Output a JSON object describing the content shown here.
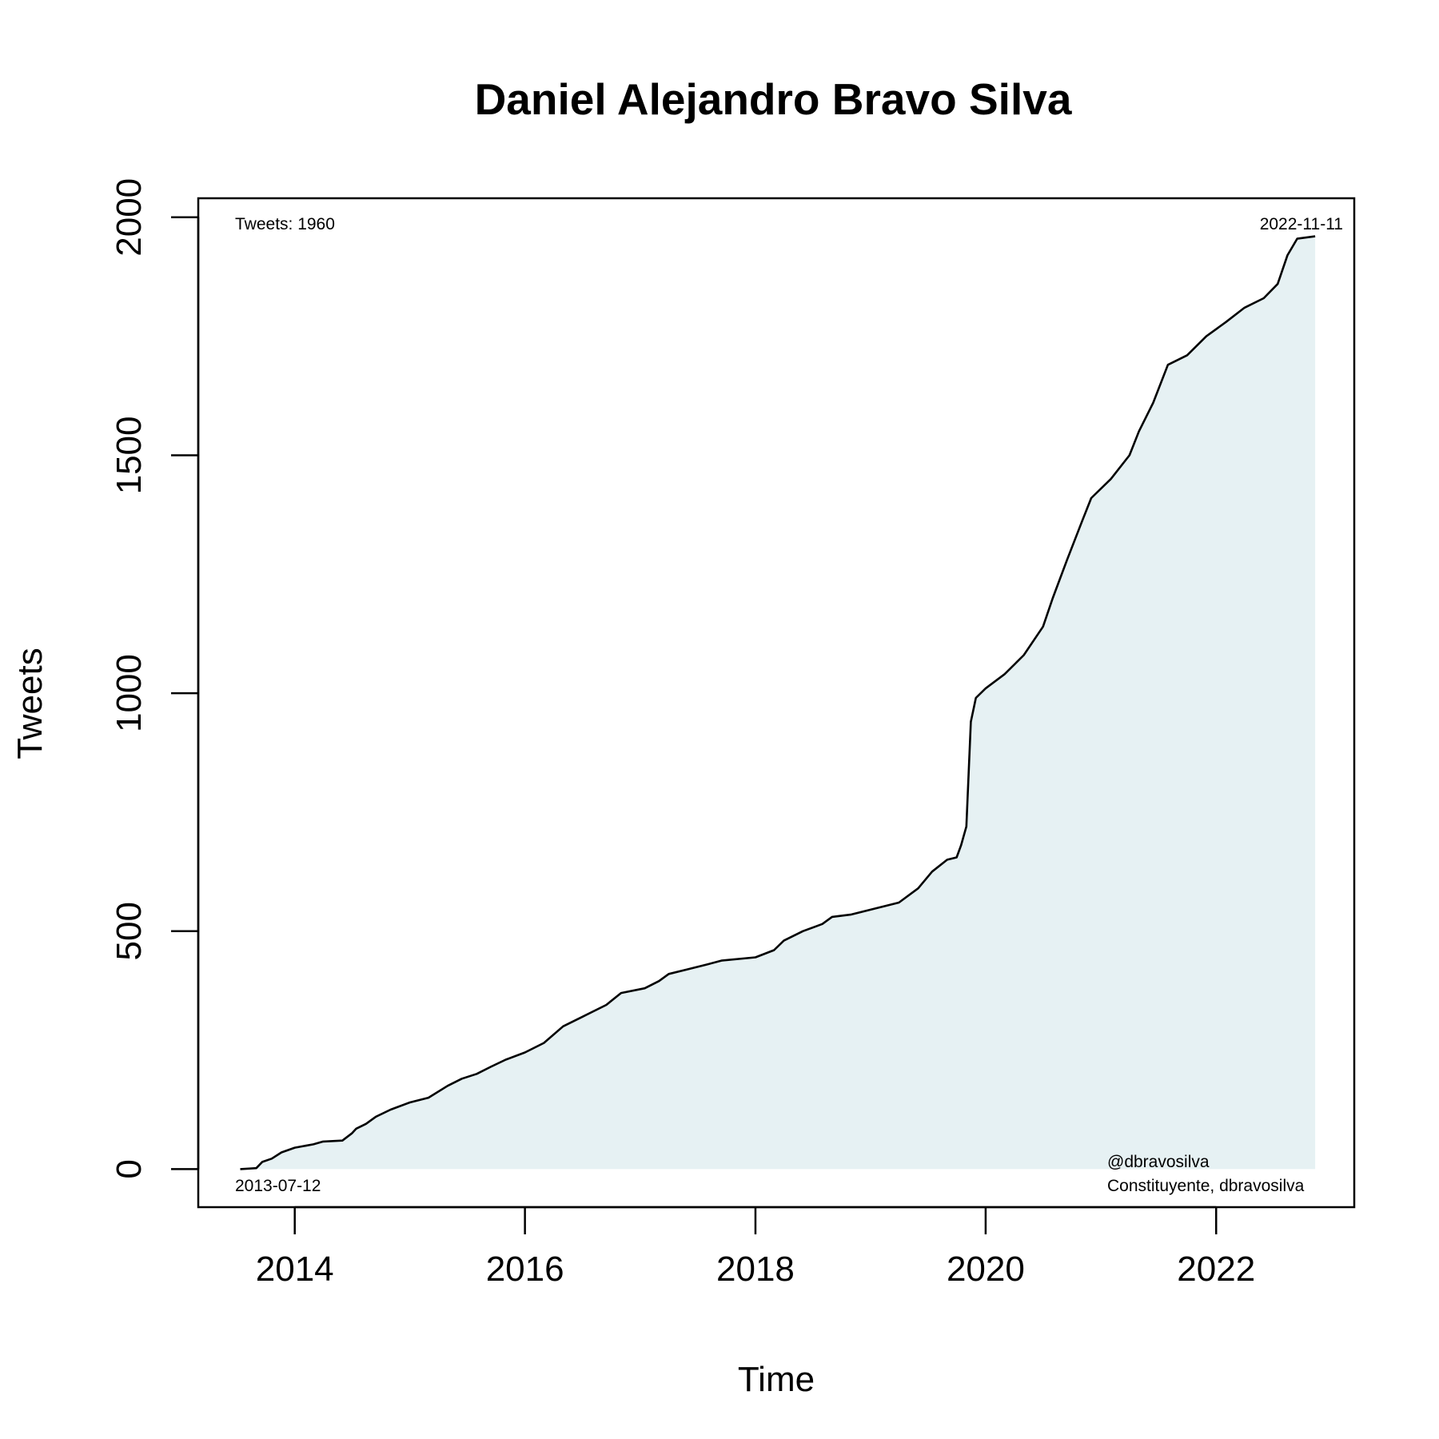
{
  "chart_data": {
    "type": "area",
    "title": "Daniel Alejandro Bravo Silva",
    "xlabel": "Time",
    "ylabel": "Tweets",
    "x_axis": {
      "type": "date",
      "range": [
        "2013-03-01",
        "2023-03-15"
      ],
      "ticks": [
        "2014",
        "2016",
        "2018",
        "2020",
        "2022"
      ]
    },
    "y_axis": {
      "range": [
        -80,
        2040
      ],
      "ticks": [
        "0",
        "500",
        "1000",
        "1500",
        "2000"
      ]
    },
    "grid": false,
    "fill_color": "#e6f1f3",
    "line_color": "#000000",
    "annotations": {
      "top_left": "Tweets: 1960",
      "top_right": "2022-11-11",
      "bottom_left": "2013-07-12",
      "bottom_right_line1": "@dbravosilva",
      "bottom_right_line2": "Constituyente, dbravosilva"
    },
    "series": [
      {
        "points": [
          [
            "2013-07-12",
            0
          ],
          [
            "2013-09-01",
            2
          ],
          [
            "2013-09-20",
            15
          ],
          [
            "2013-10-20",
            22
          ],
          [
            "2013-11-20",
            35
          ],
          [
            "2014-01-01",
            45
          ],
          [
            "2014-03-01",
            52
          ],
          [
            "2014-04-01",
            58
          ],
          [
            "2014-06-01",
            60
          ],
          [
            "2014-07-01",
            75
          ],
          [
            "2014-07-15",
            85
          ],
          [
            "2014-08-15",
            95
          ],
          [
            "2014-09-15",
            110
          ],
          [
            "2014-11-01",
            125
          ],
          [
            "2015-01-01",
            140
          ],
          [
            "2015-03-01",
            150
          ],
          [
            "2015-05-01",
            175
          ],
          [
            "2015-06-15",
            190
          ],
          [
            "2015-08-01",
            200
          ],
          [
            "2015-09-15",
            215
          ],
          [
            "2015-11-01",
            230
          ],
          [
            "2016-01-01",
            245
          ],
          [
            "2016-03-01",
            265
          ],
          [
            "2016-05-01",
            300
          ],
          [
            "2016-07-01",
            320
          ],
          [
            "2016-09-15",
            345
          ],
          [
            "2016-11-01",
            370
          ],
          [
            "2017-01-15",
            380
          ],
          [
            "2017-03-01",
            395
          ],
          [
            "2017-04-01",
            410
          ],
          [
            "2017-06-01",
            420
          ],
          [
            "2017-08-01",
            430
          ],
          [
            "2017-09-15",
            438
          ],
          [
            "2018-01-01",
            445
          ],
          [
            "2018-03-01",
            460
          ],
          [
            "2018-04-01",
            480
          ],
          [
            "2018-06-01",
            500
          ],
          [
            "2018-08-01",
            515
          ],
          [
            "2018-09-01",
            530
          ],
          [
            "2018-11-01",
            535
          ],
          [
            "2019-01-01",
            545
          ],
          [
            "2019-04-01",
            560
          ],
          [
            "2019-06-01",
            590
          ],
          [
            "2019-07-15",
            625
          ],
          [
            "2019-09-01",
            650
          ],
          [
            "2019-10-01",
            655
          ],
          [
            "2019-10-15",
            680
          ],
          [
            "2019-11-01",
            720
          ],
          [
            "2019-11-08",
            830
          ],
          [
            "2019-11-15",
            940
          ],
          [
            "2019-12-01",
            990
          ],
          [
            "2020-01-01",
            1010
          ],
          [
            "2020-03-01",
            1040
          ],
          [
            "2020-05-01",
            1080
          ],
          [
            "2020-07-01",
            1140
          ],
          [
            "2020-08-01",
            1200
          ],
          [
            "2020-09-15",
            1280
          ],
          [
            "2020-11-01",
            1360
          ],
          [
            "2020-12-01",
            1410
          ],
          [
            "2021-02-01",
            1450
          ],
          [
            "2021-04-01",
            1500
          ],
          [
            "2021-05-01",
            1550
          ],
          [
            "2021-06-15",
            1610
          ],
          [
            "2021-08-01",
            1690
          ],
          [
            "2021-10-01",
            1710
          ],
          [
            "2021-12-01",
            1750
          ],
          [
            "2022-02-01",
            1780
          ],
          [
            "2022-04-01",
            1810
          ],
          [
            "2022-06-01",
            1830
          ],
          [
            "2022-07-15",
            1860
          ],
          [
            "2022-08-15",
            1920
          ],
          [
            "2022-09-15",
            1955
          ],
          [
            "2022-11-11",
            1960
          ]
        ]
      }
    ]
  }
}
